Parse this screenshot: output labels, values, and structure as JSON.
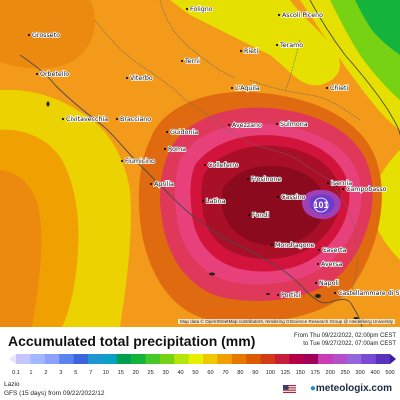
{
  "title": "Accumulated total precipitation (mm)",
  "time_from": "From Thu 09/22/2022, 02:00pm CEST",
  "time_to": "to Tue 09/27/2022, 07:00am CEST",
  "region": "Lazio",
  "model": "GFS (15 days) from 09/22/2022/12",
  "brand": "meteologix.com",
  "attribution": "Map data © OpenStreetMap contributors, rendering GIScience Research Group @ Heidelberg University",
  "max_marker": "101",
  "legend": {
    "ticks": [
      "0.1",
      "1",
      "2",
      "3",
      "5",
      "7",
      "10",
      "15",
      "20",
      "25",
      "30",
      "40",
      "50",
      "60",
      "70",
      "80",
      "90",
      "100",
      "125",
      "150",
      "175",
      "200",
      "250",
      "300",
      "400",
      "500"
    ],
    "colors": [
      "#c6c6ff",
      "#a0b8ff",
      "#8ca0ff",
      "#5a82f0",
      "#3c64dc",
      "#1e96d2",
      "#0aa0c8",
      "#00a050",
      "#14b43c",
      "#46c828",
      "#78d214",
      "#b4e60a",
      "#e6f000",
      "#f0c800",
      "#f0a000",
      "#e67800",
      "#dc5a00",
      "#d23c14",
      "#c81e3c",
      "#b40046",
      "#a0005a",
      "#c83cb4",
      "#b450c8",
      "#9664dc",
      "#784bd2",
      "#5a32be"
    ]
  },
  "cities": [
    {
      "name": "Foligno"
    },
    {
      "name": "Ascoli Piceno"
    },
    {
      "name": "Grosseto"
    },
    {
      "name": "Rieti"
    },
    {
      "name": "Teramo"
    },
    {
      "name": "Orbetello"
    },
    {
      "name": "Viterbo"
    },
    {
      "name": "Terni"
    },
    {
      "name": "L'Aquila"
    },
    {
      "name": "Chieti"
    },
    {
      "name": "Civitavecchia"
    },
    {
      "name": "Bracciano"
    },
    {
      "name": "Guidonia"
    },
    {
      "name": "Avezzano"
    },
    {
      "name": "Sulmona"
    },
    {
      "name": "Roma"
    },
    {
      "name": "Fiumicino"
    },
    {
      "name": "Colleferro"
    },
    {
      "name": "Frosinone"
    },
    {
      "name": "Isernia"
    },
    {
      "name": "Aprilia"
    },
    {
      "name": "Latina"
    },
    {
      "name": "Fondi"
    },
    {
      "name": "Cassino"
    },
    {
      "name": "Campobasso"
    },
    {
      "name": "Mondragone"
    },
    {
      "name": "Caserta"
    },
    {
      "name": "Aversa"
    },
    {
      "name": "Napoli"
    },
    {
      "name": "Castellammare di Stabia"
    },
    {
      "name": "Portici"
    }
  ]
}
